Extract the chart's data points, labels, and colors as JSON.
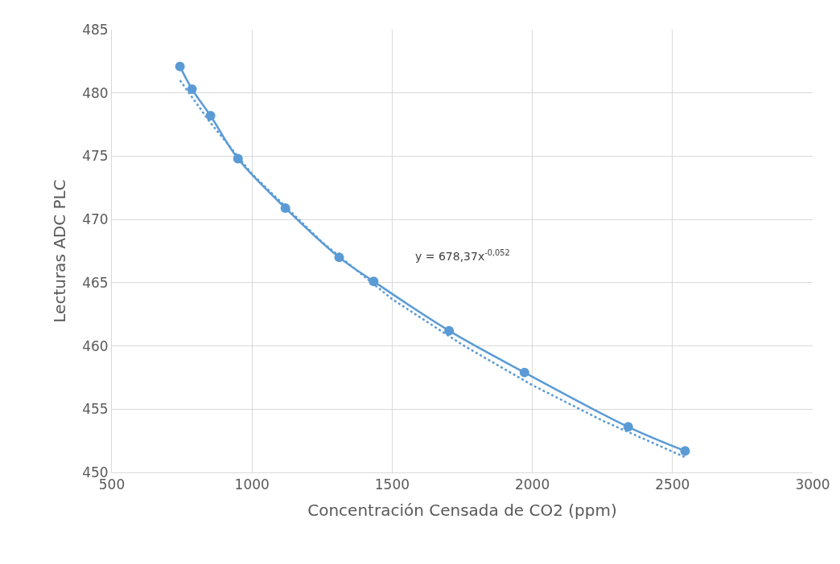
{
  "chart_data": {
    "type": "line",
    "xlabel": "Concentración Censada de CO2 (ppm)",
    "ylabel": "Lecturas ADC PLC",
    "x": [
      743,
      786,
      852,
      950,
      1119,
      1311,
      1434,
      1703,
      1972,
      2342,
      2545
    ],
    "series": [
      {
        "color": "#5b9bd5",
        "marker": "circle",
        "line_style": "solid",
        "values": [
          482.1,
          480.3,
          478.2,
          474.8,
          470.9,
          467.0,
          465.1,
          461.2,
          457.9,
          453.6,
          451.7
        ]
      },
      {
        "type": "line",
        "color": "#5b9bd5",
        "marker": "none",
        "line_style": "dotted",
        "x": [
          743,
          850,
          1000,
          1250,
          1500,
          1750,
          2000,
          2250,
          2545
        ],
        "values": [
          481.0,
          477.7,
          473.6,
          468.2,
          463.7,
          460.1,
          456.9,
          454.1,
          451.2
        ]
      }
    ],
    "annotations": [
      "y = 678,37x$^{-0,052}$"
    ],
    "xlim": [
      500,
      3000
    ],
    "xticks": [
      500,
      1000,
      1500,
      2000,
      2500,
      3000
    ],
    "ylim": [
      450,
      485
    ],
    "yticks": [
      450,
      455,
      460,
      465,
      470,
      475,
      480,
      485
    ],
    "grid": true
  }
}
